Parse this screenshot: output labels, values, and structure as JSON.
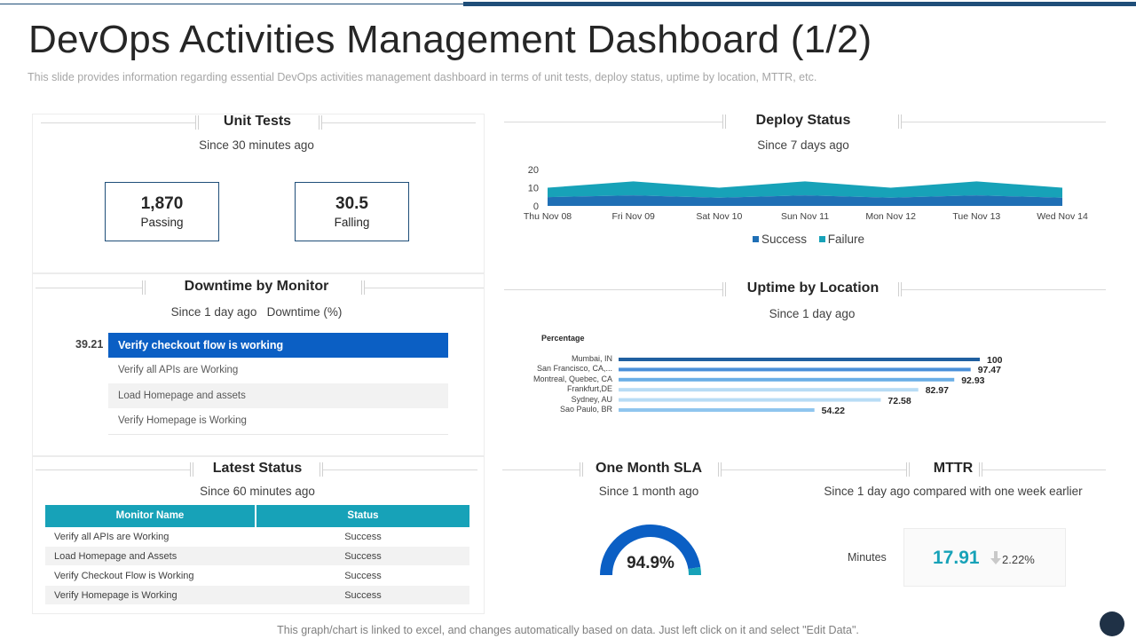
{
  "title": "DevOps Activities Management Dashboard (1/2)",
  "subtitle": "This slide provides  information  regarding  essential DevOps  activities management  dashboard  in terms of unit tests, deploy status, uptime by location, MTTR,  etc.",
  "unit_tests": {
    "title": "Unit Tests",
    "since": "Since 30 minutes ago",
    "passing": {
      "value": "1,870",
      "label": "Passing"
    },
    "falling": {
      "value": "30.5",
      "label": "Falling"
    }
  },
  "downtime": {
    "title": "Downtime by Monitor",
    "since": "Since 1 day ago",
    "unit": "Downtime  (%)",
    "value": "39.21",
    "items": [
      "Verify checkout flow is working",
      "Verify all APIs are Working",
      "Load Homepage and assets",
      "Verify Homepage is Working"
    ]
  },
  "latest_status": {
    "title": "Latest Status",
    "since": "Since 60 minutes ago",
    "columns": [
      "Monitor Name",
      "Status"
    ],
    "rows": [
      [
        "Verify all APIs are Working",
        "Success"
      ],
      [
        "Load Homepage and Assets",
        "Success"
      ],
      [
        "Verify Checkout Flow is Working",
        "Success"
      ],
      [
        "Verify Homepage is Working",
        "Success"
      ]
    ]
  },
  "deploy_status": {
    "title": "Deploy Status",
    "since": "Since 7 days ago"
  },
  "uptime": {
    "title": "Uptime by Location",
    "since": "Since 1 day ago"
  },
  "sla": {
    "title": "One Month SLA",
    "since": "Since 1 month ago",
    "value": "94.9%",
    "fraction": 0.949
  },
  "mttr": {
    "title": "MTTR",
    "since": "Since 1 day ago compared with one week earlier",
    "label": "Minutes",
    "value": "17.91",
    "change": "2.22%",
    "change_icon": "arrow-down-icon"
  },
  "footer": "This graph/chart is linked to excel, and changes automatically based on data. Just left click on it and select \"Edit Data\".",
  "colors": {
    "navy": "#1f4e79",
    "blue": "#0b5fc4",
    "teal": "#17a2b8"
  },
  "chart_data": [
    {
      "type": "area",
      "categories": [
        "Thu Nov 08",
        "Fri Nov 09",
        "Sat Nov 10",
        "Sun Nov 11",
        "Mon Nov 12",
        "Tue Nov 13",
        "Wed Nov 14"
      ],
      "ylim": [
        0,
        20
      ],
      "yticks": [
        0,
        10,
        20
      ],
      "stacked": true,
      "legend": "bottom",
      "series": [
        {
          "name": "Success",
          "color": "#1f6fb5",
          "values": [
            4.8,
            5.8,
            4.5,
            5.8,
            4.5,
            5.8,
            4.5
          ]
        },
        {
          "name": "Failure",
          "color": "#17a2b8",
          "values": [
            5.2,
            7.7,
            5.5,
            7.7,
            5.5,
            7.7,
            5.5
          ]
        }
      ]
    },
    {
      "type": "bar",
      "orientation": "horizontal",
      "title": "Percentage",
      "categories": [
        "Mumbai, IN",
        "San Francisco, CA,...",
        "Montreal, Quebec, CA",
        "Frankfurt,DE",
        "Sydney, AU",
        "Sao Paulo, BR"
      ],
      "values": [
        100,
        97.47,
        92.93,
        82.97,
        72.58,
        54.22
      ],
      "value_labels": [
        "100",
        "97.47",
        "92.93",
        "82.97",
        "72.58",
        "54.22"
      ],
      "xlim": [
        0,
        100
      ],
      "colors": [
        "#1f5fa0",
        "#4a90d9",
        "#6aaee6",
        "#b8dcf5",
        "#b8dcf5",
        "#8fc5ee"
      ]
    }
  ]
}
